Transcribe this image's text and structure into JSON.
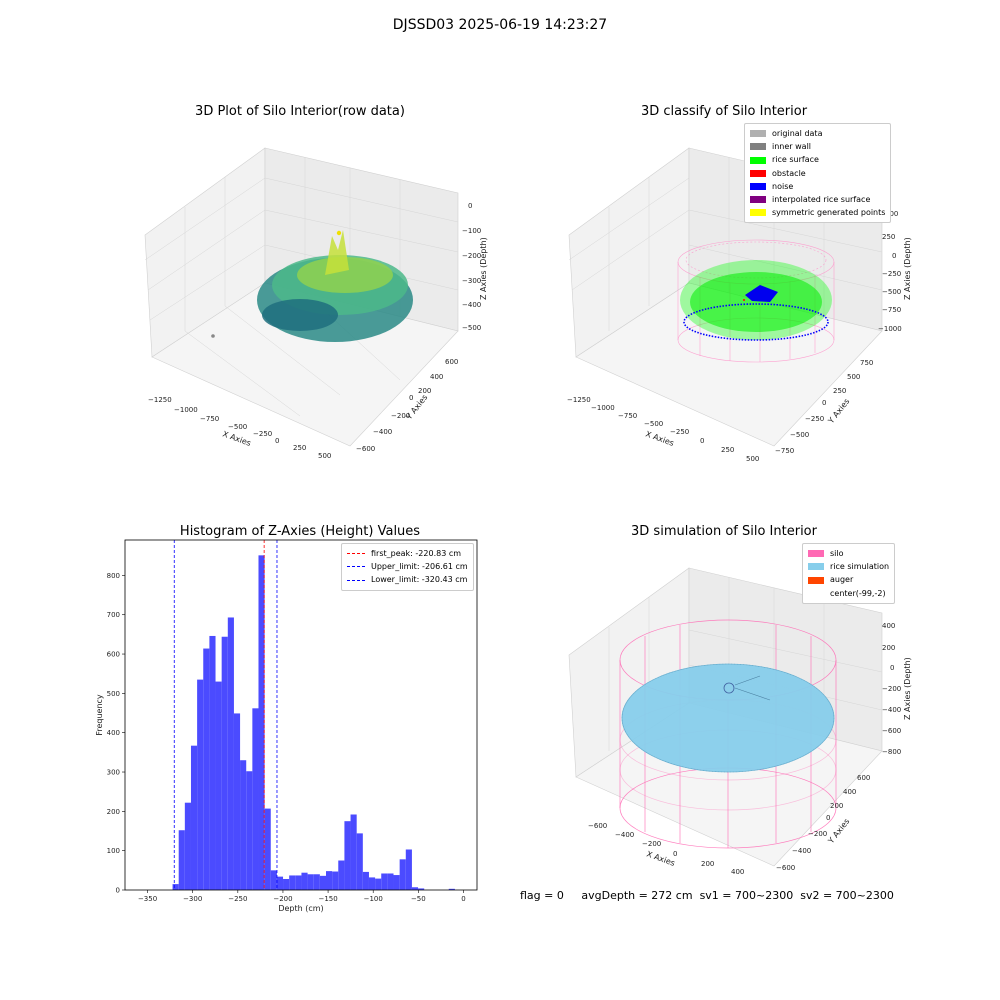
{
  "figure_title": "DJSSD03 2025-06-19 14:23:27",
  "footer": {
    "flag": "flag = 0",
    "avg_depth": "avgDepth = 272 cm",
    "sv1": "sv1 = 700~2300",
    "sv2": "sv2 = 700~2300"
  },
  "chart_data": [
    {
      "type": "scatter",
      "title": "3D Plot of Silo Interior(row data)",
      "xlabel": "X Axies",
      "ylabel": "Y Axies",
      "zlabel": "Z Axies (Depth)",
      "x_ticks": [
        "−1250",
        "−1000",
        "−750",
        "−500",
        "−250",
        "0",
        "250",
        "500"
      ],
      "y_ticks": [
        "−600",
        "−400",
        "−200",
        "0",
        "200",
        "400",
        "600"
      ],
      "z_ticks": [
        "−500",
        "−400",
        "−300",
        "−200",
        "−100",
        "0"
      ],
      "colormap": "viridis"
    },
    {
      "type": "scatter",
      "title": "3D classify of Silo Interior",
      "xlabel": "X Axies",
      "ylabel": "Y Axies",
      "zlabel": "Z Axies (Depth)",
      "x_ticks": [
        "−1250",
        "−1000",
        "−750",
        "−500",
        "−250",
        "0",
        "250",
        "500"
      ],
      "y_ticks": [
        "−750",
        "−500",
        "−250",
        "0",
        "250",
        "500",
        "750"
      ],
      "z_ticks": [
        "−1000",
        "−750",
        "−500",
        "−250",
        "0",
        "250",
        "500"
      ],
      "legend": [
        {
          "label": "original data",
          "color": "#b0b0b0"
        },
        {
          "label": "inner wall",
          "color": "#808080"
        },
        {
          "label": "rice surface",
          "color": "#00ff00"
        },
        {
          "label": "obstacle",
          "color": "#ff0000"
        },
        {
          "label": "noise",
          "color": "#0000ff"
        },
        {
          "label": "interpolated rice surface",
          "color": "#800080"
        },
        {
          "label": "symmetric generated points",
          "color": "#ffff00"
        }
      ]
    },
    {
      "type": "bar",
      "title": "Histogram of Z-Axies (Height) Values",
      "xlabel": "Depth (cm)",
      "ylabel": "Frequency",
      "xlim": [
        -375,
        15
      ],
      "ylim": [
        0,
        890
      ],
      "x_ticks": [
        -350,
        -300,
        -250,
        -200,
        -150,
        -100,
        -50,
        0
      ],
      "x_tick_labels": [
        "−350",
        "−300",
        "−250",
        "−200",
        "−150",
        "−100",
        "−50",
        "0"
      ],
      "y_ticks": [
        0,
        100,
        200,
        300,
        400,
        500,
        600,
        700,
        800
      ],
      "bar_color": "#4b4bff",
      "bin_width": 6.8,
      "bins": [
        [
          -322.3,
          15
        ],
        [
          -315.5,
          152
        ],
        [
          -308.7,
          222
        ],
        [
          -301.9,
          367
        ],
        [
          -295.1,
          535
        ],
        [
          -288.3,
          614
        ],
        [
          -281.5,
          646
        ],
        [
          -274.7,
          530
        ],
        [
          -267.9,
          644
        ],
        [
          -261.1,
          693
        ],
        [
          -254.3,
          449
        ],
        [
          -247.5,
          330
        ],
        [
          -240.7,
          302
        ],
        [
          -233.9,
          462
        ],
        [
          -227.1,
          851
        ],
        [
          -220.3,
          207
        ],
        [
          -213.5,
          50
        ],
        [
          -206.7,
          34
        ],
        [
          -199.9,
          28
        ],
        [
          -193.1,
          37
        ],
        [
          -186.3,
          37
        ],
        [
          -179.5,
          44
        ],
        [
          -172.7,
          40
        ],
        [
          -165.9,
          40
        ],
        [
          -159.1,
          36
        ],
        [
          -152.3,
          48
        ],
        [
          -145.5,
          47
        ],
        [
          -138.7,
          75
        ],
        [
          -131.9,
          175
        ],
        [
          -125.1,
          192
        ],
        [
          -118.3,
          144
        ],
        [
          -111.5,
          46
        ],
        [
          -104.7,
          32
        ],
        [
          -97.9,
          29
        ],
        [
          -91.1,
          42
        ],
        [
          -84.3,
          42
        ],
        [
          -77.5,
          38
        ],
        [
          -70.7,
          78
        ],
        [
          -63.9,
          103
        ],
        [
          -57.1,
          7
        ],
        [
          -50.3,
          4
        ],
        [
          -16.3,
          3
        ]
      ],
      "vlines": [
        {
          "label": "first_peak: -220.83 cm",
          "x": -220.83,
          "color": "#ff0000"
        },
        {
          "label": "Upper_limit: -206.61 cm",
          "x": -206.61,
          "color": "#0000ff"
        },
        {
          "label": "Lower_limit: -320.43 cm",
          "x": -320.43,
          "color": "#0000ff"
        }
      ],
      "legend_position": "upper right"
    },
    {
      "type": "scatter",
      "title": "3D simulation of Silo Interior",
      "xlabel": "X Axies",
      "ylabel": "Y Axies",
      "zlabel": "Z Axies (Depth)",
      "x_ticks": [
        "−600",
        "−400",
        "−200",
        "0",
        "200",
        "400"
      ],
      "y_ticks": [
        "−600",
        "−400",
        "−200",
        "0",
        "200",
        "400",
        "600"
      ],
      "z_ticks": [
        "−800",
        "−600",
        "−400",
        "−200",
        "0",
        "200",
        "400"
      ],
      "legend": [
        {
          "label": "silo",
          "color": "#ff69b4"
        },
        {
          "label": "rice simulation",
          "color": "#87ceeb"
        },
        {
          "label": "auger",
          "color": "#ff4500"
        },
        {
          "label": "center(-99,-2)",
          "color": ""
        }
      ]
    }
  ]
}
